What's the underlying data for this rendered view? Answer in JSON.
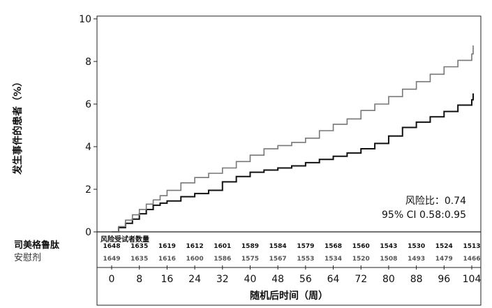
{
  "chart_data": {
    "type": "line",
    "ylabel": "发生事件的患者（%）",
    "xlabel": "随机后时间（周）",
    "ylim": [
      0,
      10
    ],
    "xlim": [
      0,
      109
    ],
    "y_ticks": [
      "0",
      "2",
      "4",
      "6",
      "8",
      "10"
    ],
    "x_ticks": [
      "0",
      "8",
      "16",
      "24",
      "32",
      "40",
      "48",
      "56",
      "64",
      "72",
      "80",
      "88",
      "96",
      "104"
    ],
    "annotation": {
      "hazard_ratio": "风险比：0.74",
      "ci": "95% CI 0.58:0.95"
    },
    "series": [
      {
        "name": "司美格鲁肽",
        "color": "#111111",
        "x": [
          0,
          2,
          4,
          6,
          8,
          10,
          12,
          14,
          16,
          20,
          24,
          28,
          32,
          36,
          40,
          44,
          48,
          52,
          56,
          60,
          64,
          68,
          72,
          76,
          80,
          84,
          88,
          92,
          96,
          100,
          104,
          108
        ],
        "y": [
          0,
          0.2,
          0.4,
          0.6,
          0.85,
          1.05,
          1.25,
          1.35,
          1.45,
          1.65,
          1.8,
          1.95,
          2.35,
          2.6,
          2.8,
          2.9,
          3.0,
          3.1,
          3.25,
          3.4,
          3.55,
          3.7,
          3.9,
          4.15,
          4.5,
          4.9,
          5.15,
          5.4,
          5.65,
          5.95,
          6.2,
          6.5
        ]
      },
      {
        "name": "安慰剂",
        "color": "#777777",
        "x": [
          0,
          2,
          4,
          6,
          8,
          10,
          12,
          14,
          16,
          20,
          24,
          28,
          32,
          36,
          40,
          44,
          48,
          52,
          56,
          60,
          64,
          68,
          72,
          76,
          80,
          84,
          88,
          92,
          96,
          100,
          104,
          108
        ],
        "y": [
          0,
          0.25,
          0.55,
          0.8,
          1.05,
          1.3,
          1.5,
          1.7,
          1.95,
          2.3,
          2.55,
          2.75,
          3.0,
          3.3,
          3.6,
          3.9,
          4.05,
          4.2,
          4.4,
          4.75,
          5.05,
          5.3,
          5.7,
          6.0,
          6.35,
          6.7,
          7.05,
          7.4,
          7.75,
          8.05,
          8.35,
          8.75
        ]
      }
    ]
  },
  "risk_table": {
    "title": "风险受试者数量",
    "groups": [
      {
        "label": "司美格鲁肽",
        "values": [
          "1648",
          "1635",
          "1619",
          "1612",
          "1601",
          "1589",
          "1584",
          "1579",
          "1568",
          "1560",
          "1543",
          "1530",
          "1524",
          "1513"
        ]
      },
      {
        "label": "安慰剂",
        "values": [
          "1649",
          "1635",
          "1616",
          "1600",
          "1586",
          "1575",
          "1567",
          "1553",
          "1534",
          "1520",
          "1508",
          "1493",
          "1479",
          "1466"
        ]
      }
    ]
  }
}
